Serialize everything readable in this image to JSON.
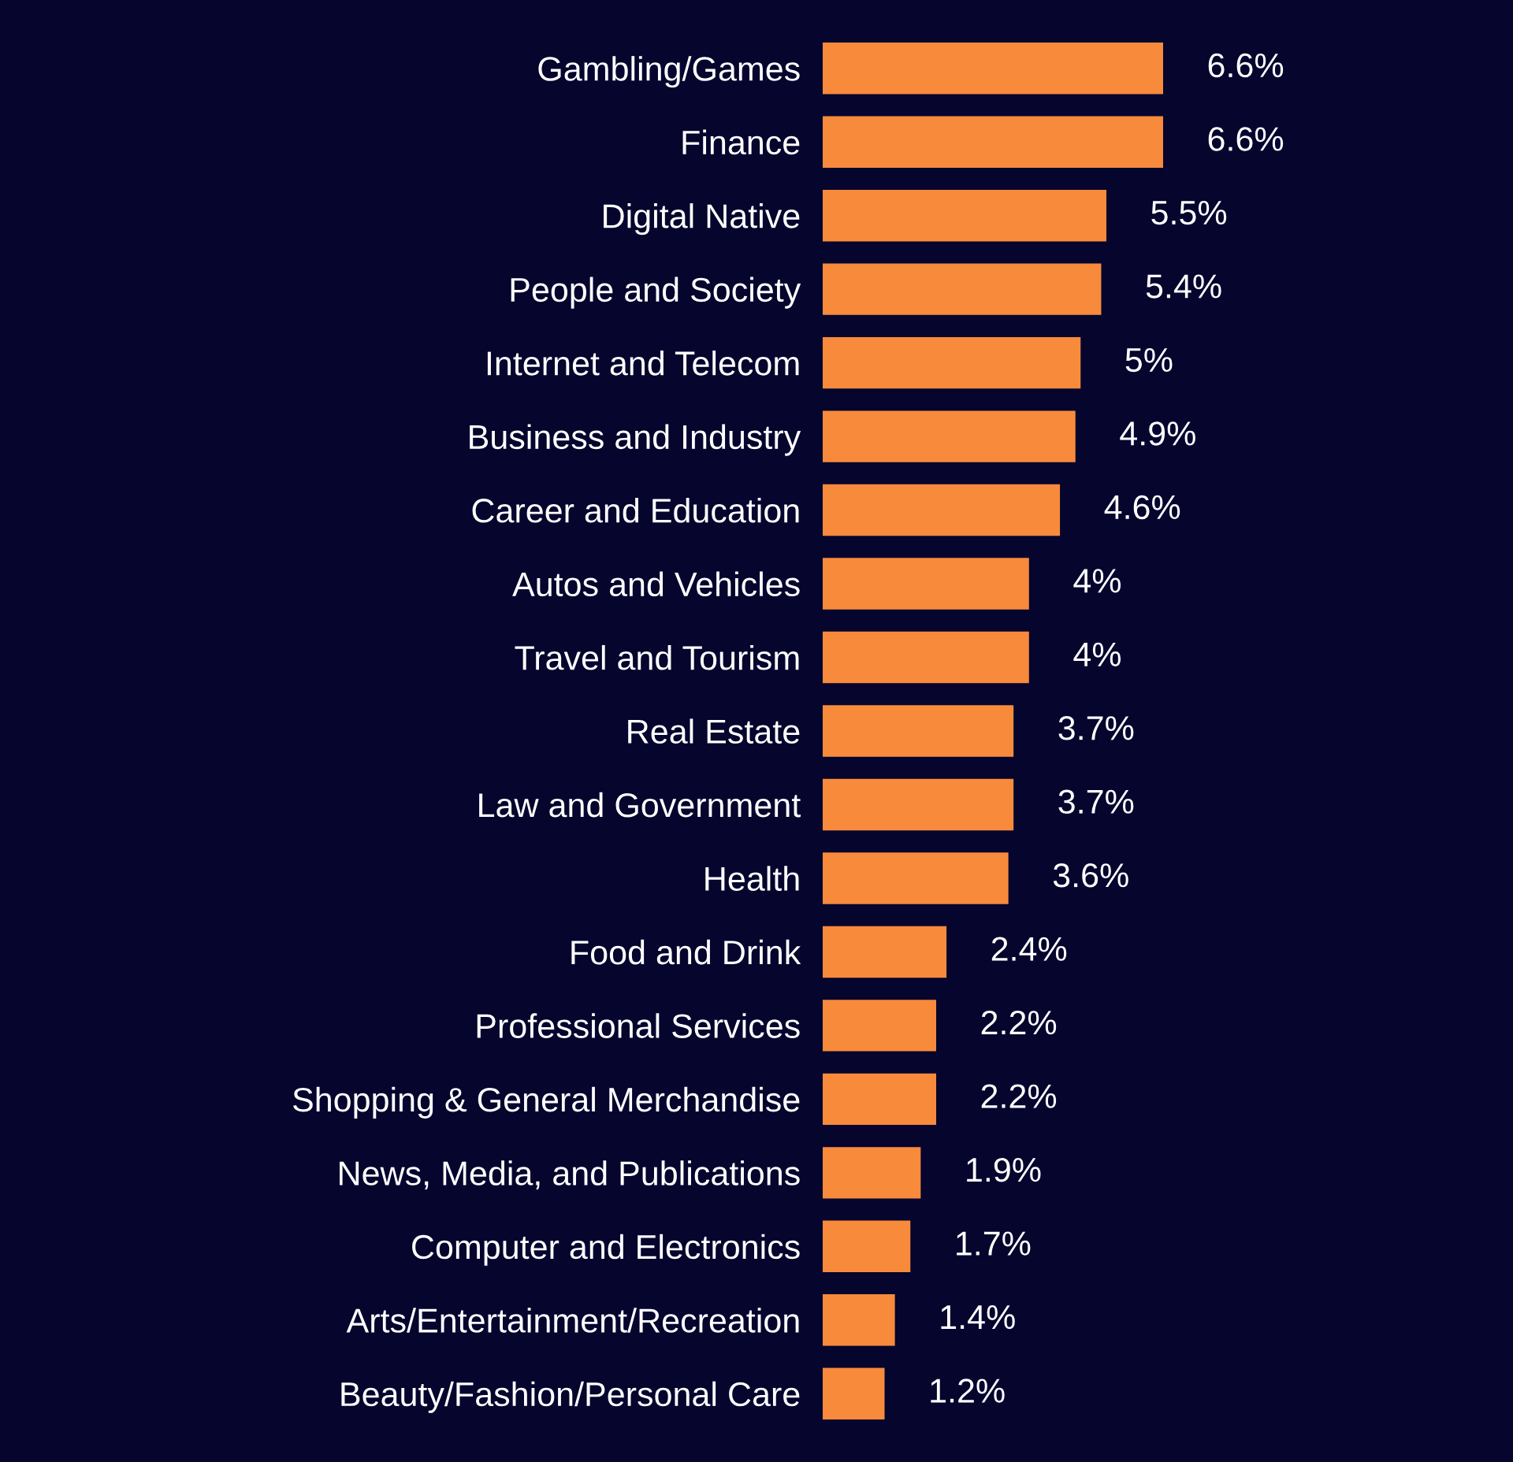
{
  "chart_data": {
    "type": "bar",
    "orientation": "horizontal",
    "categories": [
      "Gambling/Games",
      "Finance",
      "Digital Native",
      "People and Society",
      "Internet and Telecom",
      "Business and Industry",
      "Career and Education",
      "Autos and Vehicles",
      "Travel and Tourism",
      "Real Estate",
      "Law and Government",
      "Health",
      "Food and Drink",
      "Professional Services",
      "Shopping & General Merchandise",
      "News, Media, and Publications",
      "Computer and Electronics",
      "Arts/Entertainment/Recreation",
      "Beauty/Fashion/Personal Care"
    ],
    "values": [
      6.6,
      6.6,
      5.5,
      5.4,
      5,
      4.9,
      4.6,
      4,
      4,
      3.7,
      3.7,
      3.6,
      2.4,
      2.2,
      2.2,
      1.9,
      1.7,
      1.4,
      1.2
    ],
    "value_labels": [
      "6.6%",
      "6.6%",
      "5.5%",
      "5.4%",
      "5%",
      "4.9%",
      "4.6%",
      "4%",
      "4%",
      "3.7%",
      "3.7%",
      "3.6%",
      "2.4%",
      "2.2%",
      "2.2%",
      "1.9%",
      "1.7%",
      "1.4%",
      "1.2%"
    ],
    "color": "#f88a3c",
    "grid": false,
    "legend": false
  }
}
